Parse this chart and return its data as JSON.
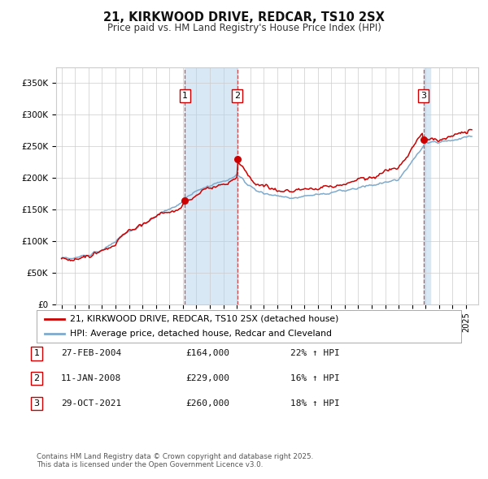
{
  "title": "21, KIRKWOOD DRIVE, REDCAR, TS10 2SX",
  "subtitle": "Price paid vs. HM Land Registry's House Price Index (HPI)",
  "legend_line1": "21, KIRKWOOD DRIVE, REDCAR, TS10 2SX (detached house)",
  "legend_line2": "HPI: Average price, detached house, Redcar and Cleveland",
  "transactions": [
    {
      "num": 1,
      "date_x": 2004.15,
      "price": 164000,
      "hpi_pct": "22% ↑ HPI",
      "date_str": "27-FEB-2004"
    },
    {
      "num": 2,
      "date_x": 2008.03,
      "price": 229000,
      "hpi_pct": "16% ↑ HPI",
      "date_str": "11-JAN-2008"
    },
    {
      "num": 3,
      "date_x": 2021.83,
      "price": 260000,
      "hpi_pct": "18% ↑ HPI",
      "date_str": "29-OCT-2021"
    }
  ],
  "red_line_color": "#cc0000",
  "blue_line_color": "#7faacc",
  "shade_color": "#d8e8f5",
  "grid_color": "#cccccc",
  "background_color": "#ffffff",
  "footer_text": "Contains HM Land Registry data © Crown copyright and database right 2025.\nThis data is licensed under the Open Government Licence v3.0.",
  "ylim": [
    0,
    375000
  ],
  "yticks": [
    0,
    50000,
    100000,
    150000,
    200000,
    250000,
    300000,
    350000
  ],
  "xlim_left": 1994.6,
  "xlim_right": 2025.9
}
